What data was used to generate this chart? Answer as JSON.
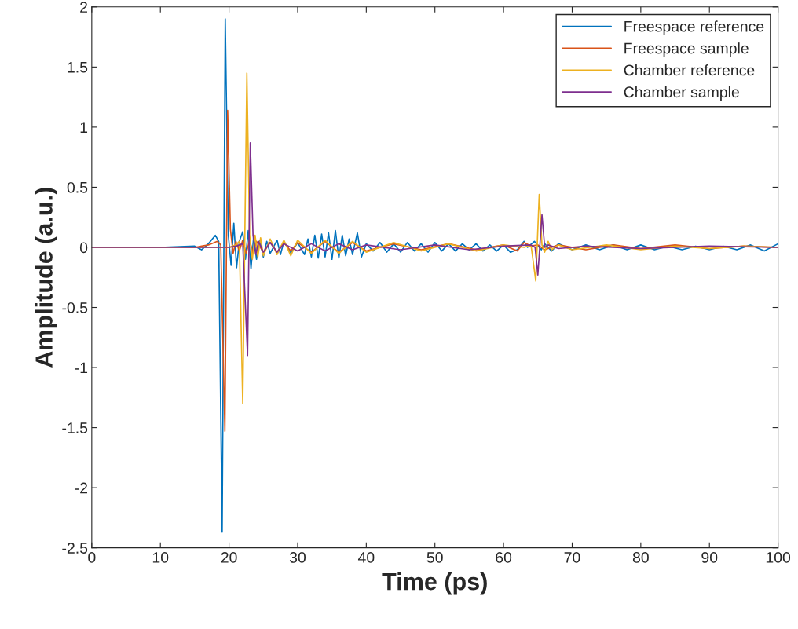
{
  "chart_data": {
    "type": "line",
    "xlabel": "Time (ps)",
    "ylabel": "Amplitude (a.u.)",
    "xlim": [
      0,
      100
    ],
    "xticks": [
      0,
      10,
      20,
      30,
      40,
      50,
      60,
      70,
      80,
      90,
      100
    ],
    "ylim": [
      -2.5,
      2
    ],
    "yticks": [
      -2.5,
      -2,
      -1.5,
      -1,
      -0.5,
      0,
      0.5,
      1,
      1.5,
      2
    ],
    "grid": false,
    "legend": "top right",
    "marker": "none",
    "line_style": "solid",
    "series": [
      {
        "name": "Freespace reference",
        "color": "#0072bd",
        "x": [
          0,
          10,
          15,
          16,
          17,
          18,
          18.5,
          19.0,
          19.45,
          19.9,
          20.3,
          20.7,
          21.1,
          21.5,
          22.0,
          22.4,
          22.8,
          23.2,
          23.6,
          24,
          24.5,
          25,
          25.5,
          26,
          27,
          27.5,
          28,
          29,
          30,
          31,
          31.5,
          32,
          32.5,
          33,
          33.5,
          34,
          34.5,
          35,
          35.5,
          36,
          36.5,
          37,
          37.5,
          38,
          38.7,
          39.3,
          40,
          41,
          42,
          43,
          44,
          45,
          46,
          47,
          48,
          49,
          50,
          51,
          52,
          53,
          54,
          55,
          56,
          57,
          58,
          59,
          60,
          61,
          62,
          63,
          63.5,
          64.5,
          65.5,
          66,
          67,
          68,
          70,
          72,
          74,
          76,
          78,
          80,
          82,
          84,
          86,
          88,
          90,
          92,
          94,
          96,
          98,
          100
        ],
        "values": [
          0,
          0,
          0.01,
          -0.02,
          0.03,
          0.1,
          0.05,
          -2.37,
          1.9,
          0.1,
          -0.15,
          0.2,
          -0.17,
          0.05,
          0.13,
          -0.1,
          0.14,
          -0.18,
          0.1,
          -0.1,
          0.06,
          -0.08,
          0.05,
          -0.05,
          0.06,
          -0.06,
          0.05,
          -0.05,
          0.04,
          -0.06,
          0.07,
          -0.08,
          0.1,
          -0.09,
          0.11,
          -0.08,
          0.12,
          -0.1,
          0.14,
          -0.09,
          0.1,
          -0.07,
          0.07,
          -0.06,
          0.12,
          -0.08,
          0.03,
          -0.03,
          0.04,
          -0.04,
          0.03,
          -0.04,
          0.04,
          -0.03,
          0.03,
          -0.04,
          0.04,
          -0.03,
          0.03,
          -0.03,
          0.03,
          -0.02,
          0.03,
          -0.03,
          0.02,
          -0.03,
          0.02,
          -0.04,
          -0.02,
          0.05,
          0,
          0.05,
          -0.02,
          0.03,
          -0.03,
          0.03,
          -0.02,
          0.02,
          -0.02,
          0.02,
          -0.02,
          0.02,
          -0.02,
          0.01,
          -0.02,
          0.01,
          -0.02,
          0.01,
          -0.02,
          0.02,
          -0.03,
          0.03
        ]
      },
      {
        "name": "Freespace sample",
        "color": "#d95319",
        "x": [
          0,
          15,
          17,
          18.3,
          18.8,
          19.4,
          19.8,
          20.2,
          20.6,
          21,
          21.5,
          22,
          22.5,
          23,
          23.5,
          24,
          25,
          26,
          27,
          28,
          29,
          30,
          32,
          34,
          36,
          38,
          40,
          44,
          48,
          52,
          56,
          60,
          62,
          63,
          64,
          65,
          66,
          68,
          72,
          76,
          80,
          85,
          90,
          95,
          100
        ],
        "values": [
          0,
          0,
          0.02,
          0.05,
          0.02,
          -1.53,
          1.14,
          0.15,
          -0.05,
          0.05,
          -0.03,
          0.06,
          -0.05,
          0.06,
          -0.05,
          0.05,
          -0.04,
          0.04,
          -0.04,
          0.04,
          -0.03,
          0.04,
          -0.04,
          0.05,
          -0.04,
          0.04,
          -0.03,
          0.03,
          -0.02,
          0.03,
          -0.02,
          0.02,
          -0.03,
          0.04,
          0.01,
          0.02,
          -0.02,
          0.02,
          -0.02,
          0.02,
          -0.01,
          0.02,
          -0.01,
          0.01,
          0
        ]
      },
      {
        "name": "Chamber reference",
        "color": "#edb120",
        "x": [
          0,
          15,
          20,
          21,
          21.5,
          22.0,
          22.6,
          23.0,
          23.4,
          23.8,
          24.2,
          24.6,
          25,
          26,
          27,
          28,
          29,
          30,
          32,
          34,
          36,
          38,
          40,
          44,
          48,
          52,
          56,
          60,
          63,
          64,
          64.7,
          65.2,
          65.6,
          66,
          66.5,
          67,
          68,
          70,
          75,
          80,
          85,
          90,
          95,
          100
        ],
        "values": [
          0,
          0,
          0,
          0.02,
          0.05,
          -1.3,
          1.45,
          0.1,
          -0.1,
          0.1,
          -0.08,
          0.08,
          -0.07,
          0.07,
          -0.06,
          0.06,
          -0.07,
          0.06,
          -0.05,
          0.06,
          -0.05,
          0.05,
          -0.04,
          0.04,
          -0.03,
          0.03,
          -0.03,
          0.02,
          0,
          0.02,
          -0.28,
          0.44,
          0.02,
          -0.04,
          0.05,
          -0.02,
          0.02,
          -0.02,
          0.02,
          -0.02,
          0.01,
          -0.01,
          0.01,
          0
        ]
      },
      {
        "name": "Chamber sample",
        "color": "#7e2f8e",
        "x": [
          0,
          20,
          21,
          22,
          22.7,
          23.1,
          23.5,
          23.9,
          24.3,
          25,
          26,
          27,
          28,
          30,
          32,
          34,
          36,
          38,
          40,
          45,
          50,
          55,
          60,
          64,
          64.6,
          65.0,
          65.6,
          66,
          66.5,
          68,
          72,
          80,
          90,
          100
        ],
        "values": [
          0,
          0,
          0.01,
          0.03,
          -0.9,
          0.87,
          0.1,
          -0.06,
          0.05,
          -0.04,
          0.04,
          -0.04,
          0.03,
          -0.03,
          0.03,
          -0.03,
          0.03,
          -0.02,
          0.02,
          -0.02,
          0.02,
          -0.02,
          0.01,
          0.02,
          0,
          -0.23,
          0.27,
          0,
          0.02,
          -0.01,
          0.01,
          -0.01,
          0.01,
          0
        ]
      }
    ]
  }
}
